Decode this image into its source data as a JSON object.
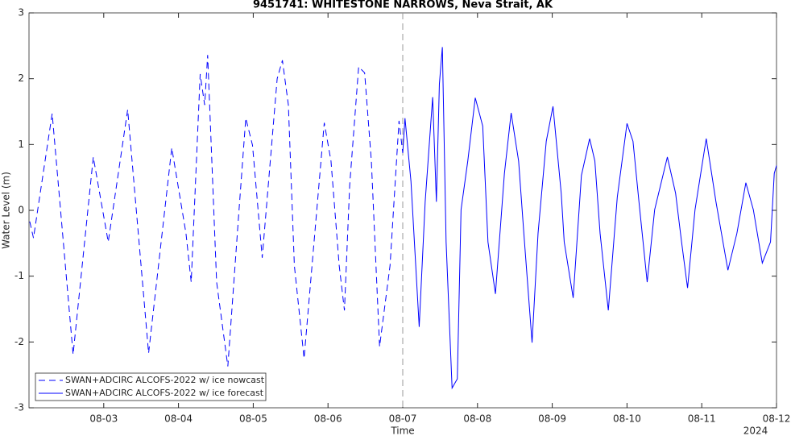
{
  "chart_data": {
    "type": "line",
    "title": "9451741: WHITESTONE NARROWS, Neva Strait, AK",
    "x_label": "Time",
    "y_label": "Water Level (m)",
    "year_label": "2024",
    "xlim": [
      2,
      12
    ],
    "ylim": [
      -3,
      3
    ],
    "xticks": [
      {
        "value": 3,
        "label": "08-03"
      },
      {
        "value": 4,
        "label": "08-04"
      },
      {
        "value": 5,
        "label": "08-05"
      },
      {
        "value": 6,
        "label": "08-06"
      },
      {
        "value": 7,
        "label": "08-07"
      },
      {
        "value": 8,
        "label": "08-08"
      },
      {
        "value": 9,
        "label": "08-09"
      },
      {
        "value": 10,
        "label": "08-10"
      },
      {
        "value": 11,
        "label": "08-11"
      },
      {
        "value": 12,
        "label": "08-12"
      }
    ],
    "yticks": [
      -3,
      -2,
      -1,
      0,
      1,
      2,
      3
    ],
    "nowcast_end": 7,
    "legend": "lower left",
    "series": [
      {
        "name": "SWAN+ADCIRC ALCOFS-2022 w/ ice nowcast",
        "color": "#0000ff",
        "dash": true,
        "x": [
          2.01,
          2.06,
          2.31,
          2.59,
          2.86,
          3.06,
          3.32,
          3.6,
          3.91,
          4.1,
          4.17,
          4.29,
          4.35,
          4.39,
          4.51,
          4.66,
          4.81,
          4.9,
          4.99,
          5.12,
          5.32,
          5.39,
          5.47,
          5.55,
          5.68,
          5.95,
          6.04,
          6.15,
          6.22,
          6.29,
          6.41,
          6.49,
          6.58,
          6.69,
          6.83,
          6.95,
          7.0
        ],
        "values": [
          -0.17,
          -0.42,
          1.47,
          -2.19,
          0.81,
          -0.48,
          1.53,
          -2.17,
          0.95,
          -0.35,
          -1.09,
          2.07,
          1.6,
          2.36,
          -1.09,
          -2.37,
          0.01,
          1.4,
          0.99,
          -0.72,
          2.0,
          2.28,
          1.6,
          -0.84,
          -2.25,
          1.33,
          0.75,
          -0.84,
          -1.52,
          0.38,
          2.18,
          2.09,
          0.75,
          -2.07,
          -0.84,
          1.36,
          0.87
        ]
      },
      {
        "name": "SWAN+ADCIRC ALCOFS-2022 w/ ice forecast",
        "color": "#0000ff",
        "dash": false,
        "x": [
          7.0,
          7.03,
          7.11,
          7.22,
          7.3,
          7.4,
          7.45,
          7.49,
          7.53,
          7.58,
          7.66,
          7.73,
          7.78,
          7.87,
          7.97,
          8.07,
          8.14,
          8.24,
          8.36,
          8.45,
          8.55,
          8.62,
          8.73,
          8.81,
          8.92,
          9.01,
          9.12,
          9.16,
          9.28,
          9.39,
          9.5,
          9.57,
          9.64,
          9.75,
          9.87,
          10.0,
          10.08,
          10.16,
          10.27,
          10.37,
          10.54,
          10.65,
          10.73,
          10.81,
          10.91,
          11.06,
          11.19,
          11.35,
          11.47,
          11.59,
          11.69,
          11.81,
          11.92,
          11.97,
          12.0
        ],
        "values": [
          0.87,
          1.4,
          0.44,
          -1.77,
          0.13,
          1.72,
          0.13,
          1.92,
          2.48,
          -0.48,
          -2.7,
          -2.56,
          0.01,
          0.75,
          1.71,
          1.28,
          -0.48,
          -1.27,
          0.56,
          1.48,
          0.75,
          -0.35,
          -2.01,
          -0.35,
          1.05,
          1.58,
          0.26,
          -0.48,
          -1.33,
          0.53,
          1.09,
          0.75,
          -0.35,
          -1.52,
          0.2,
          1.32,
          1.05,
          0.13,
          -1.09,
          0.01,
          0.81,
          0.26,
          -0.48,
          -1.18,
          0.01,
          1.09,
          0.13,
          -0.91,
          -0.35,
          0.42,
          0.01,
          -0.8,
          -0.48,
          0.56,
          0.68
        ]
      }
    ]
  }
}
